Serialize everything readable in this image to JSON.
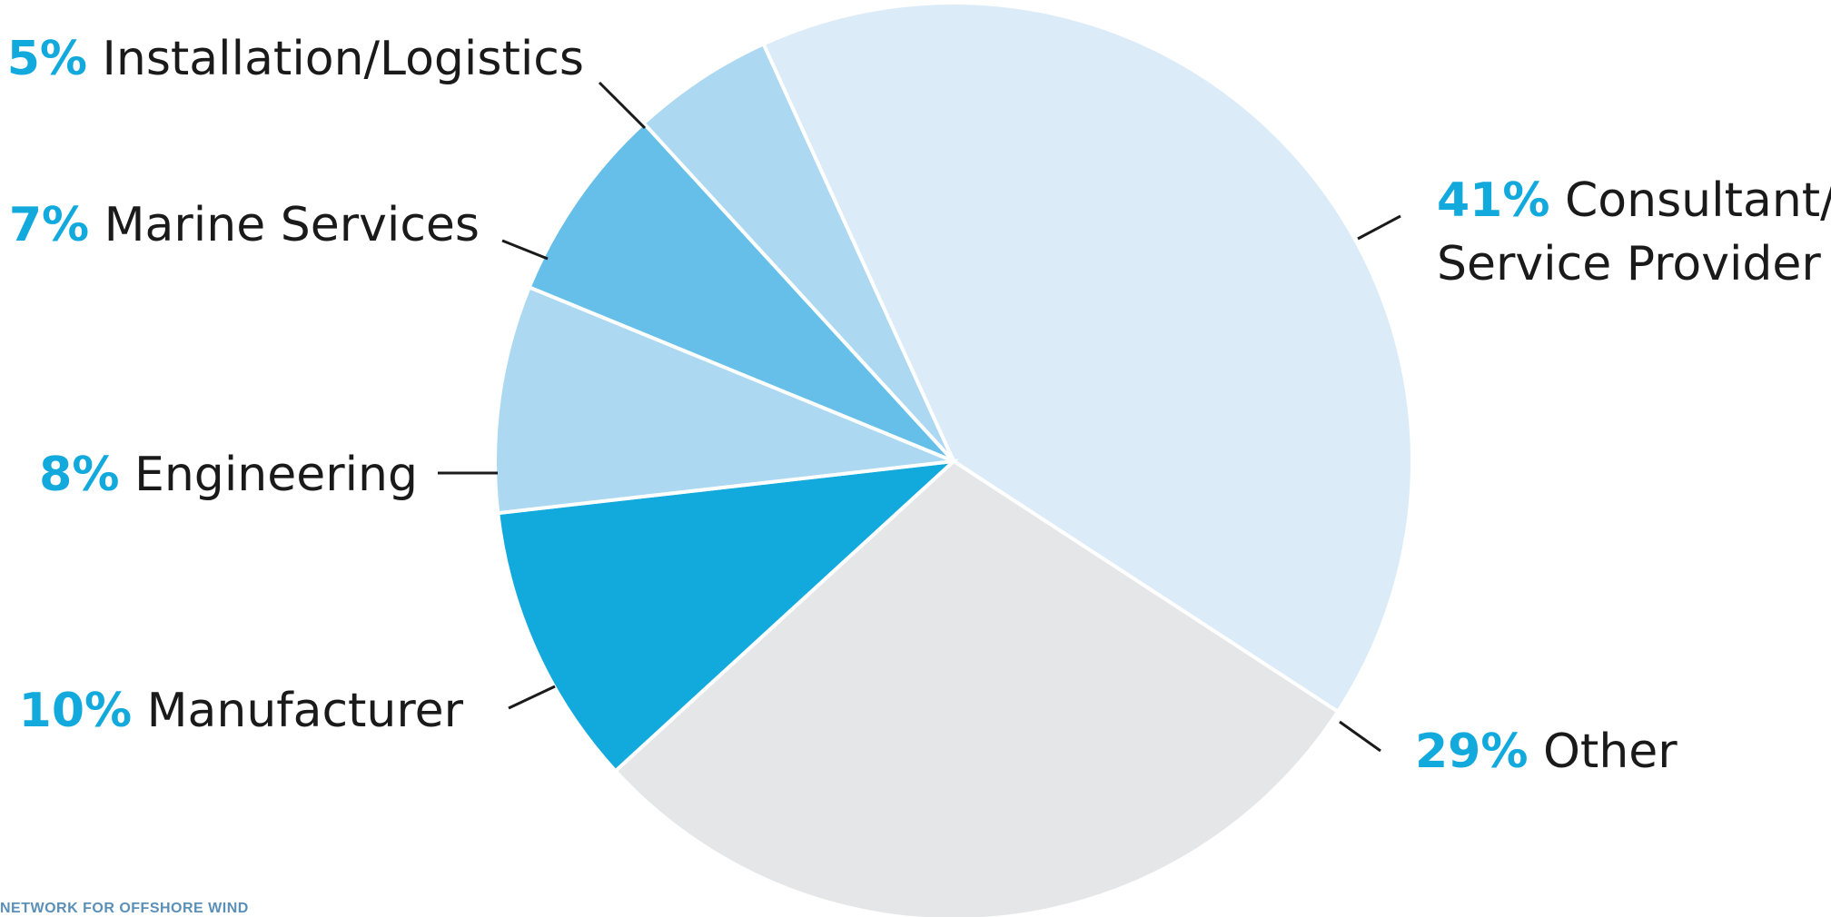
{
  "chart_data": {
    "type": "pie",
    "categories": [
      "Consultant/ Service Provider",
      "Other",
      "Manufacturer",
      "Engineering",
      "Marine Services",
      "Installation/Logistics"
    ],
    "values": [
      41,
      29,
      10,
      8,
      7,
      5
    ],
    "colors": [
      "#dcebf8",
      "#e5e6e8",
      "#12a9dc",
      "#acd8f1",
      "#65bfe8",
      "#acd8f1"
    ],
    "label_lines": [
      [
        "41%",
        "Consultant/"
      ],
      [
        "29%",
        "Other"
      ],
      [
        "10%",
        "Manufacturer"
      ],
      [
        "8%",
        "Engineering"
      ],
      [
        "7%",
        "Marine Services"
      ],
      [
        "5%",
        "Installation/Logistics"
      ]
    ],
    "label_line2": [
      "Service Provider",
      "",
      "",
      "",
      "",
      ""
    ],
    "accent": "#12a9dc"
  },
  "footer": {
    "text": "NETWORK FOR OFFSHORE WIND"
  }
}
